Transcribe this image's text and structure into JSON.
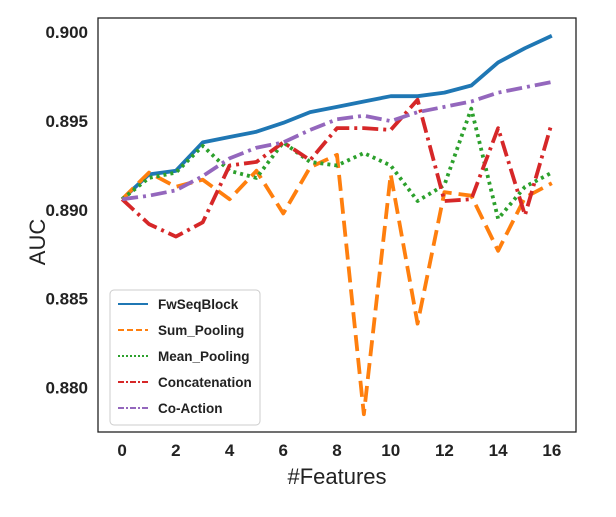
{
  "chart_data": {
    "type": "line",
    "xlabel": "#Features",
    "ylabel": "AUC",
    "x": [
      0,
      1,
      2,
      3,
      4,
      5,
      6,
      7,
      8,
      9,
      10,
      11,
      12,
      13,
      14,
      15,
      16
    ],
    "xlim": [
      -0.9,
      16.9
    ],
    "ylim": [
      0.8775,
      0.9008
    ],
    "xticks": [
      0,
      2,
      4,
      6,
      8,
      10,
      12,
      14,
      16
    ],
    "yticks": [
      0.88,
      0.885,
      0.89,
      0.895,
      0.9
    ],
    "ytick_labels": [
      "0.880",
      "0.885",
      "0.890",
      "0.895",
      "0.900"
    ],
    "grid": false,
    "legend_position": "bottom-left",
    "series": [
      {
        "name": "FwSeqBlock",
        "color": "#1f77b4",
        "style": "solid",
        "values": [
          0.8906,
          0.892,
          0.8922,
          0.8938,
          0.8941,
          0.8944,
          0.8949,
          0.8955,
          0.8958,
          0.8961,
          0.8964,
          0.8964,
          0.8966,
          0.897,
          0.8983,
          0.8991,
          0.8998
        ]
      },
      {
        "name": "Sum_Pooling",
        "color": "#ff7f0e",
        "style": "dashed",
        "values": [
          0.8906,
          0.8921,
          0.8913,
          0.8917,
          0.8906,
          0.8922,
          0.8898,
          0.8924,
          0.8931,
          0.8785,
          0.892,
          0.8836,
          0.891,
          0.8908,
          0.8877,
          0.8907,
          0.8915
        ]
      },
      {
        "name": "Mean_Pooling",
        "color": "#2ca02c",
        "style": "dotted",
        "values": [
          0.8906,
          0.8918,
          0.8921,
          0.8936,
          0.8922,
          0.8918,
          0.8938,
          0.8927,
          0.8925,
          0.8932,
          0.8925,
          0.8905,
          0.8914,
          0.8957,
          0.8895,
          0.8913,
          0.8921
        ]
      },
      {
        "name": "Concatenation",
        "color": "#d62728",
        "style": "dashdot",
        "values": [
          0.8906,
          0.8892,
          0.8885,
          0.8893,
          0.8925,
          0.8927,
          0.8938,
          0.8928,
          0.8946,
          0.8946,
          0.8945,
          0.8962,
          0.8905,
          0.8906,
          0.8946,
          0.8897,
          0.8949
        ]
      },
      {
        "name": "Co-Action",
        "color": "#9467bd",
        "style": "dashdot",
        "values": [
          0.8906,
          0.8908,
          0.8911,
          0.8919,
          0.8929,
          0.8935,
          0.8938,
          0.8945,
          0.8951,
          0.8953,
          0.895,
          0.8955,
          0.8958,
          0.8961,
          0.8966,
          0.8969,
          0.8972
        ]
      }
    ]
  }
}
